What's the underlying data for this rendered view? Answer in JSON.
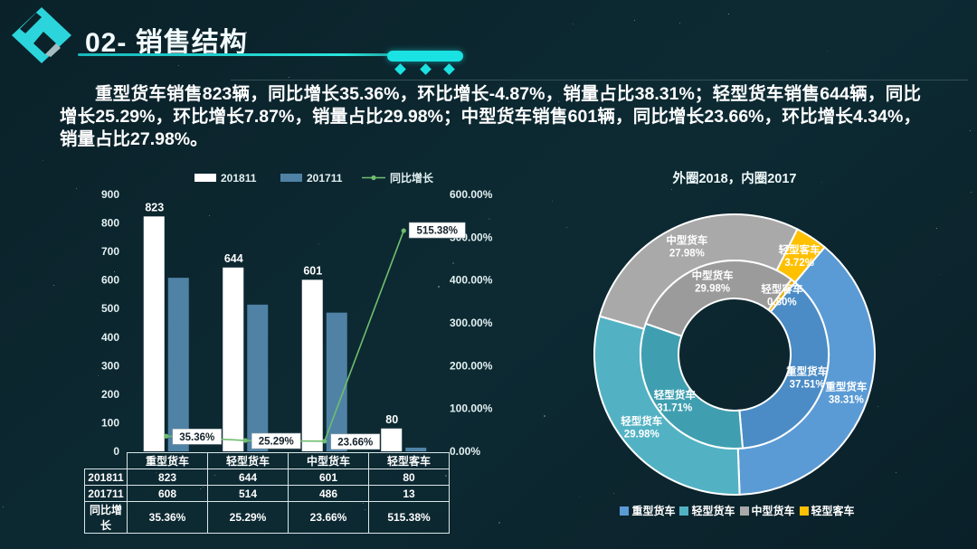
{
  "header": {
    "title": "02- 销售结构",
    "logo_icon": "diamond-logo"
  },
  "summary": "重型货车销售823辆，同比增长35.36%，环比增长-4.87%，销量占比38.31%；轻型货车销售644辆，同比增长25.29%，环比增长7.87%，销量占比29.98%；中型货车销售601辆，同比增长23.66%，环比增长4.34%，销量占比27.98%。",
  "colors": {
    "accent_cyan": "#1ae2e2",
    "bar_2018": "#ffffff",
    "bar_2017": "#4f82a5",
    "growth_line": "#6fbe6e",
    "heavy_truck": "#5b9bd5",
    "light_truck": "#52b2c4",
    "medium_truck": "#a9a9a9",
    "light_bus": "#ffc000"
  },
  "chart_data": [
    {
      "type": "bar",
      "subtype": "clustered-bars-with-growth-line",
      "legend_position": "top",
      "categories": [
        "重型货车",
        "轻型货车",
        "中型货车",
        "轻型客车"
      ],
      "series": [
        {
          "name": "201811",
          "chart": "bar",
          "axis": "left",
          "color": "#ffffff",
          "values": [
            823,
            644,
            601,
            80
          ],
          "labels": [
            "823",
            "644",
            "601",
            "80"
          ]
        },
        {
          "name": "201711",
          "chart": "bar",
          "axis": "left",
          "color": "#4f82a5",
          "values": [
            608,
            514,
            486,
            13
          ]
        },
        {
          "name": "同比增长",
          "chart": "line",
          "axis": "right",
          "color": "#6fbe6e",
          "values": [
            35.36,
            25.29,
            23.66,
            515.38
          ],
          "labels": [
            "35.36%",
            "25.29%",
            "23.66%",
            "515.38%"
          ]
        }
      ],
      "left_axis": {
        "min": 0,
        "max": 900,
        "step": 100,
        "ticks": [
          "900",
          "800",
          "700",
          "600",
          "500",
          "400",
          "300",
          "200",
          "100",
          "0"
        ]
      },
      "right_axis": {
        "min": "0.00%",
        "max": "600.00%",
        "ticks": [
          "600.00%",
          "500.00%",
          "400.00%",
          "300.00%",
          "200.00%",
          "100.00%",
          "0.00%"
        ]
      }
    },
    {
      "type": "pie",
      "subtype": "double-donut",
      "title": "外圈2018，内圈2017",
      "start_angle_deg": 40,
      "legend_position": "bottom",
      "rings": [
        {
          "name": "2018（外圈）",
          "position": "outer",
          "slices": [
            {
              "label": "重型货车",
              "pct": 38.31,
              "pct_label": "38.31%",
              "color": "#5b9bd5"
            },
            {
              "label": "轻型货车",
              "pct": 29.98,
              "pct_label": "29.98%",
              "color": "#52b2c4"
            },
            {
              "label": "中型货车",
              "pct": 27.98,
              "pct_label": "27.98%",
              "color": "#a9a9a9"
            },
            {
              "label": "轻型客车",
              "pct": 3.72,
              "pct_label": "3.72%",
              "color": "#ffc000"
            }
          ]
        },
        {
          "name": "2017（内圈）",
          "position": "inner",
          "slices": [
            {
              "label": "重型货车",
              "pct": 37.51,
              "pct_label": "37.51%",
              "color": "#4b8cc6"
            },
            {
              "label": "轻型货车",
              "pct": 31.71,
              "pct_label": "31.71%",
              "color": "#3f9fb1"
            },
            {
              "label": "中型货车",
              "pct": 29.98,
              "pct_label": "29.98%",
              "color": "#9b9b9b"
            },
            {
              "label": "轻型客车",
              "pct": 0.8,
              "pct_label": "0.80%",
              "color": "#e8b000"
            }
          ]
        }
      ],
      "legend": [
        {
          "label": "重型货车",
          "color": "#5b9bd5"
        },
        {
          "label": "轻型货车",
          "color": "#52b2c4"
        },
        {
          "label": "中型货车",
          "color": "#a9a9a9"
        },
        {
          "label": "轻型客车",
          "color": "#ffc000"
        }
      ]
    }
  ],
  "table": {
    "col_headers": [
      "重型货车",
      "轻型货车",
      "中型货车",
      "轻型客车"
    ],
    "rows": [
      {
        "label": "201811",
        "cells": [
          "823",
          "644",
          "601",
          "80"
        ]
      },
      {
        "label": "201711",
        "cells": [
          "608",
          "514",
          "486",
          "13"
        ]
      },
      {
        "label": "同比增长",
        "cells": [
          "35.36%",
          "25.29%",
          "23.66%",
          "515.38%"
        ]
      }
    ]
  }
}
